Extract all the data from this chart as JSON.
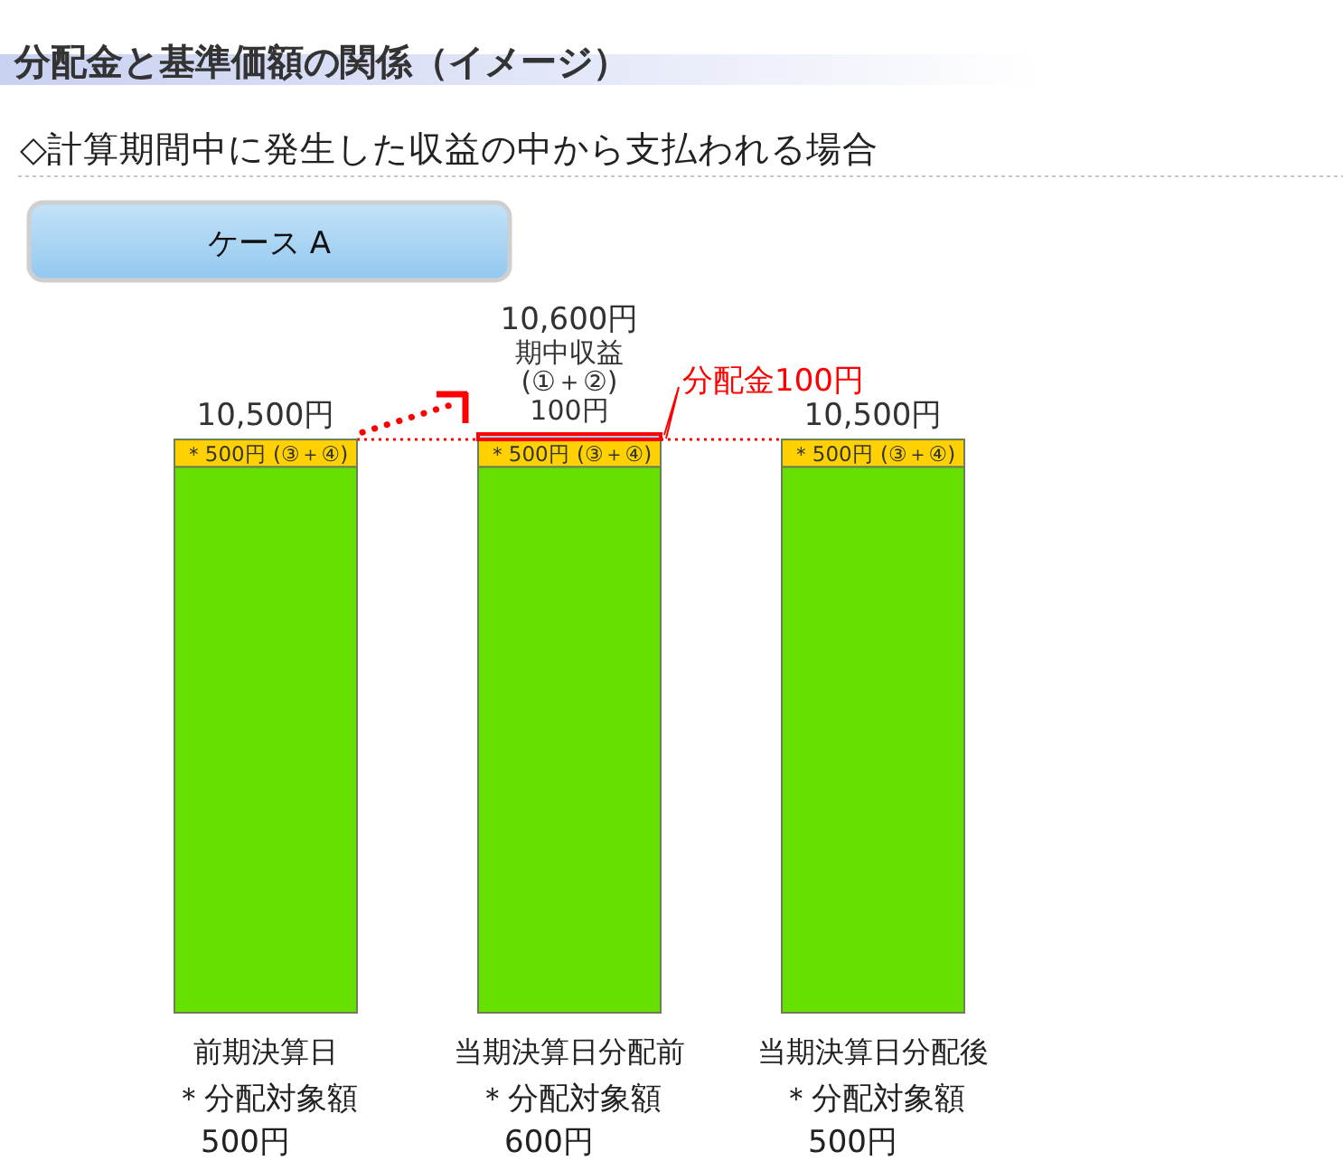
{
  "chart_data": {
    "type": "bar",
    "title": "分配金と基準価額の関係（イメージ）",
    "subtitle": "◇計算期間中に発生した収益の中から支払われる場合",
    "categories": [
      "前期決算日",
      "当期決算日分配前",
      "当期決算日分配後"
    ],
    "stacked": true,
    "tick_labels": "x",
    "series": [
      {
        "color": "#66e000",
        "values": [
          10000,
          10000,
          10000
        ]
      },
      {
        "color": "#ffd100",
        "values": [
          500,
          500,
          500
        ],
        "value_labels": [
          "＊500円\n(③＋④)",
          "＊500円\n(③＋④)",
          "＊500円\n(③＋④)"
        ]
      },
      {
        "color": "#9ecdf2",
        "values": [
          null,
          100,
          null
        ],
        "value_labels": [
          null,
          "期中収益\n(①＋②)\n100円",
          null
        ]
      }
    ],
    "totals": [
      "10,500円",
      "10,600円",
      "10,500円"
    ],
    "ref_lines": [
      {
        "axis": "y",
        "value": 10500,
        "color": "#ff0000",
        "line_style": "dotted"
      }
    ],
    "annotations": [
      "ケース A",
      "＊分配対象額\n500円",
      "＊分配対象額\n600円",
      "＊分配対象額\n500円",
      "分配金100円"
    ]
  }
}
